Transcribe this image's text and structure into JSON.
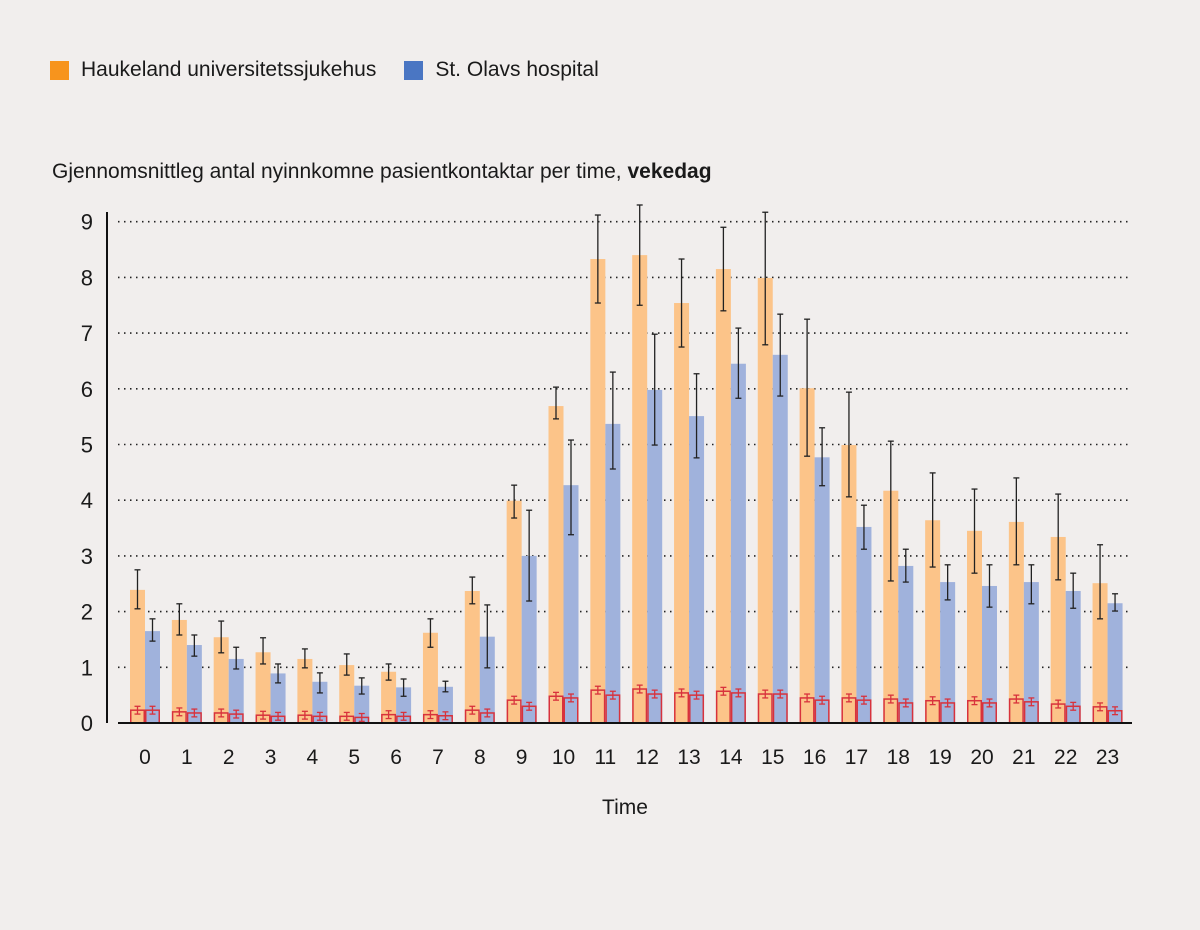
{
  "legend": [
    {
      "label": "Haukeland universitetssjukehus",
      "color": "#f7941d"
    },
    {
      "label": "St. Olavs hospital",
      "color": "#4a76c3"
    }
  ],
  "title": {
    "text": "Gjennomsnittleg antal nyinnkomne pasientkontaktar per time, ",
    "bold": "vekedag"
  },
  "chart_data": {
    "type": "bar",
    "title": "Gjennomsnittleg antal nyinnkomne pasientkontaktar per time, vekedag",
    "xlabel": "Time",
    "ylabel": "",
    "ylim": [
      0,
      9
    ],
    "yticks": [
      0,
      1,
      2,
      3,
      4,
      5,
      6,
      7,
      8,
      9
    ],
    "grid": true,
    "legend_position": "top-left",
    "categories": [
      "0",
      "1",
      "2",
      "3",
      "4",
      "5",
      "6",
      "7",
      "8",
      "9",
      "10",
      "11",
      "12",
      "13",
      "14",
      "15",
      "16",
      "17",
      "18",
      "19",
      "20",
      "21",
      "22",
      "23"
    ],
    "series": [
      {
        "name": "Haukeland universitetssjukehus",
        "color": "#fcc489",
        "values": [
          2.39,
          1.85,
          1.54,
          1.27,
          1.15,
          1.04,
          0.92,
          1.62,
          2.37,
          3.99,
          5.69,
          8.33,
          8.4,
          7.54,
          8.15,
          7.99,
          6.01,
          4.99,
          4.17,
          3.64,
          3.45,
          3.61,
          3.34,
          2.51
        ],
        "err_low": [
          2.05,
          1.58,
          1.26,
          1.06,
          0.99,
          0.86,
          0.77,
          1.36,
          2.14,
          3.68,
          5.46,
          7.54,
          7.5,
          6.75,
          7.4,
          6.79,
          4.79,
          4.06,
          2.55,
          2.8,
          2.69,
          2.84,
          2.57,
          1.87
        ],
        "err_high": [
          2.75,
          2.14,
          1.83,
          1.53,
          1.33,
          1.24,
          1.06,
          1.87,
          2.62,
          4.27,
          6.03,
          9.12,
          9.3,
          8.33,
          8.9,
          9.17,
          7.25,
          5.94,
          5.06,
          4.49,
          4.2,
          4.4,
          4.11,
          3.2
        ],
        "sub_values": [
          0.23,
          0.2,
          0.18,
          0.14,
          0.14,
          0.12,
          0.15,
          0.15,
          0.23,
          0.41,
          0.48,
          0.59,
          0.61,
          0.54,
          0.57,
          0.52,
          0.45,
          0.45,
          0.43,
          0.4,
          0.4,
          0.43,
          0.34,
          0.29
        ]
      },
      {
        "name": "St. Olavs hospital",
        "color": "#a0b2dc",
        "values": [
          1.65,
          1.4,
          1.15,
          0.89,
          0.74,
          0.67,
          0.64,
          0.65,
          1.55,
          3.0,
          4.27,
          5.37,
          5.98,
          5.51,
          6.45,
          6.61,
          4.77,
          3.52,
          2.82,
          2.53,
          2.46,
          2.53,
          2.37,
          2.15
        ],
        "err_low": [
          1.47,
          1.2,
          0.97,
          0.72,
          0.54,
          0.52,
          0.48,
          0.56,
          0.99,
          2.19,
          3.38,
          4.56,
          4.99,
          4.76,
          5.83,
          5.87,
          4.26,
          3.12,
          2.53,
          2.21,
          2.08,
          2.14,
          2.06,
          2.01
        ],
        "err_high": [
          1.87,
          1.58,
          1.36,
          1.06,
          0.9,
          0.81,
          0.79,
          0.75,
          2.12,
          3.82,
          5.08,
          6.3,
          6.98,
          6.27,
          7.09,
          7.34,
          5.3,
          3.91,
          3.12,
          2.84,
          2.84,
          2.84,
          2.69,
          2.32
        ],
        "sub_values": [
          0.23,
          0.18,
          0.16,
          0.12,
          0.12,
          0.1,
          0.12,
          0.13,
          0.18,
          0.3,
          0.45,
          0.5,
          0.52,
          0.5,
          0.54,
          0.52,
          0.41,
          0.41,
          0.36,
          0.36,
          0.36,
          0.38,
          0.3,
          0.22
        ]
      }
    ],
    "sub_series_style": {
      "outline_color": "#d8323c"
    }
  }
}
